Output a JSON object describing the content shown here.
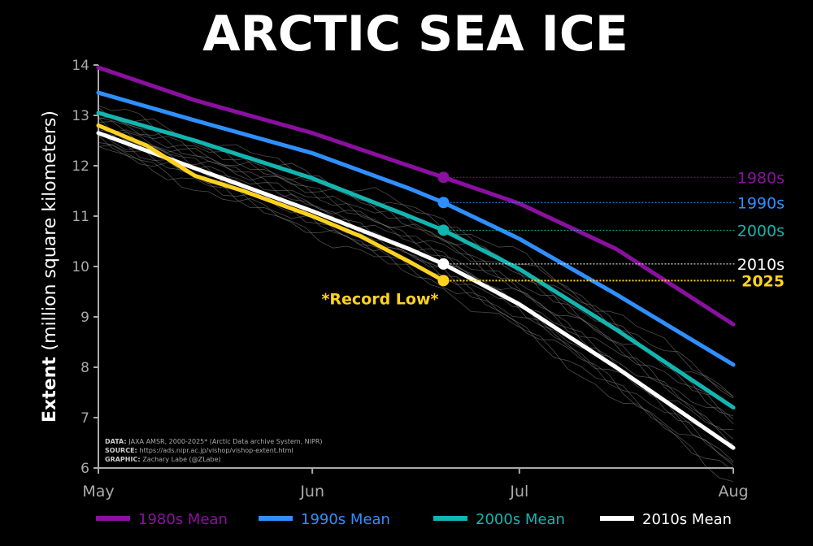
{
  "title": "ARCTIC SEA ICE",
  "chart_data": {
    "type": "line",
    "ylabel_bold": "Extent",
    "ylabel_rest": "(million square kilometers)",
    "ylim": [
      6,
      14
    ],
    "yticks": [
      6,
      7,
      8,
      9,
      10,
      11,
      12,
      13,
      14
    ],
    "xlim": [
      "May 1",
      "Aug 1"
    ],
    "xticks": [
      "May",
      "Jun",
      "Jul",
      "Aug"
    ],
    "grid": false,
    "legend_position": "bottom",
    "series": [
      {
        "name": "1980s Mean",
        "end_label": "1980s",
        "color": "#8B10A0",
        "x": [
          "May 1",
          "May 15",
          "Jun 1",
          "Jun 15",
          "Jun 20",
          "Jul 1",
          "Jul 15",
          "Aug 1"
        ],
        "values": [
          13.95,
          13.3,
          12.65,
          12.0,
          11.77,
          11.25,
          10.35,
          8.85
        ]
      },
      {
        "name": "1990s Mean",
        "end_label": "1990s",
        "color": "#2F8FFF",
        "x": [
          "May 1",
          "May 15",
          "Jun 1",
          "Jun 15",
          "Jun 20",
          "Jul 1",
          "Jul 15",
          "Aug 1"
        ],
        "values": [
          13.45,
          12.9,
          12.25,
          11.55,
          11.27,
          10.55,
          9.45,
          8.05
        ]
      },
      {
        "name": "2000s Mean",
        "end_label": "2000s",
        "color": "#13B5B0",
        "x": [
          "May 1",
          "May 15",
          "Jun 1",
          "Jun 15",
          "Jun 20",
          "Jul 1",
          "Jul 15",
          "Aug 1"
        ],
        "values": [
          13.05,
          12.5,
          11.75,
          11.0,
          10.72,
          9.95,
          8.75,
          7.2
        ]
      },
      {
        "name": "2010s Mean",
        "end_label": "2010s",
        "color": "#FFFFFF",
        "x": [
          "May 1",
          "May 15",
          "Jun 1",
          "Jun 15",
          "Jun 20",
          "Jul 1",
          "Jul 15",
          "Aug 1"
        ],
        "values": [
          12.65,
          11.95,
          11.1,
          10.35,
          10.05,
          9.25,
          8.0,
          6.4
        ]
      },
      {
        "name": "2025",
        "end_label": "2025",
        "color": "#FFD21F",
        "x": [
          "May 1",
          "May 8",
          "May 15",
          "May 22",
          "Jun 1",
          "Jun 8",
          "Jun 15",
          "Jun 20"
        ],
        "values": [
          12.8,
          12.4,
          11.8,
          11.5,
          11.0,
          10.6,
          10.1,
          9.72
        ]
      }
    ],
    "annotation": "*Record Low*",
    "credits": [
      {
        "label": "DATA:",
        "text": "JAXA AMSR, 2000-2025* (Arctic Data archive System, NIPR)"
      },
      {
        "label": "SOURCE:",
        "text": "https://ads.nipr.ac.jp/vishop/vishop-extent.html"
      },
      {
        "label": "GRAPHIC:",
        "text": "Zachary Labe (@ZLabe)"
      }
    ]
  }
}
